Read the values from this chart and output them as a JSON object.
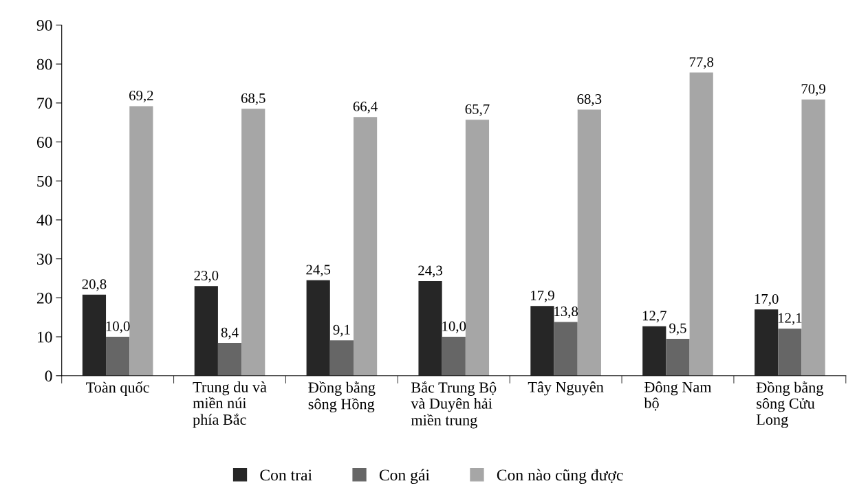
{
  "chart_data": {
    "type": "bar",
    "categories": [
      "Toàn quốc",
      "Trung du và\nmiền núi\nphía Bắc",
      "Đồng bằng\nsông Hồng",
      "Bắc Trung Bộ\nvà Duyên hải\nmiền trung",
      "Tây Nguyên",
      "Đông Nam\nbộ",
      "Đồng bằng\nsông Cửu\nLong"
    ],
    "series": [
      {
        "name": "Con trai",
        "color": "#262626",
        "values": [
          20.8,
          23.0,
          24.5,
          24.3,
          17.9,
          12.7,
          17.0
        ],
        "value_labels": [
          "20,8",
          "23,0",
          "24,5",
          "24,3",
          "17,9",
          "12,7",
          "17,0"
        ]
      },
      {
        "name": "Con gái",
        "color": "#666666",
        "values": [
          10.0,
          8.4,
          9.1,
          10.0,
          13.8,
          9.5,
          12.1
        ],
        "value_labels": [
          "10,0",
          "8,4",
          "9,1",
          "10,0",
          "13,8",
          "9,5",
          "12,1"
        ]
      },
      {
        "name": "Con nào cũng được",
        "color": "#a6a6a6",
        "values": [
          69.2,
          68.5,
          66.4,
          65.7,
          68.3,
          77.8,
          70.9
        ],
        "value_labels": [
          "69,2",
          "68,5",
          "66,4",
          "65,7",
          "68,3",
          "77,8",
          "70,9"
        ]
      }
    ],
    "ylim": [
      0,
      90
    ],
    "yticks": [
      0,
      10,
      20,
      30,
      40,
      50,
      60,
      70,
      80,
      90
    ],
    "grid": false,
    "legend": "bottom"
  }
}
